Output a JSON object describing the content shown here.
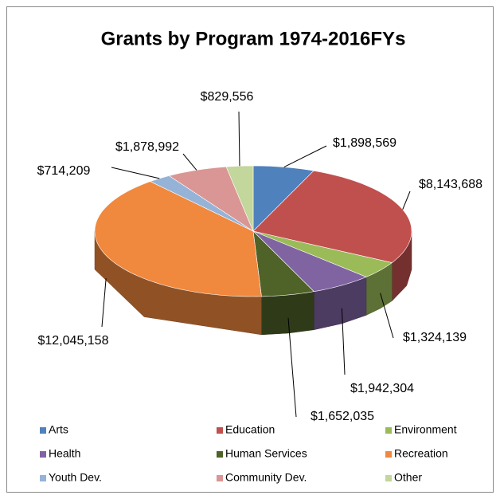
{
  "chart_data": {
    "type": "pie3d",
    "title": "Grants by Program 1974-2016FYs",
    "categories": [
      "Arts",
      "Education",
      "Environment",
      "Health",
      "Human Services",
      "Recreation",
      "Youth Dev.",
      "Community Dev.",
      "Other"
    ],
    "values": [
      1898569,
      8143688,
      1324139,
      1942304,
      1652035,
      12045158,
      714209,
      1878992,
      829556
    ],
    "value_labels": [
      "$1,898,569",
      "$8,143,688",
      "$1,324,139",
      "$1,942,304",
      "$1,652,035",
      "$12,045,158",
      "$714,209",
      "$1,878,992",
      "$829,556"
    ],
    "colors": [
      "#4f81bd",
      "#c0504d",
      "#9bbb59",
      "#8064a2",
      "#4f6228",
      "#f0883e",
      "#95b3d7",
      "#d99694",
      "#c3d69b"
    ],
    "legend": "bottom"
  }
}
